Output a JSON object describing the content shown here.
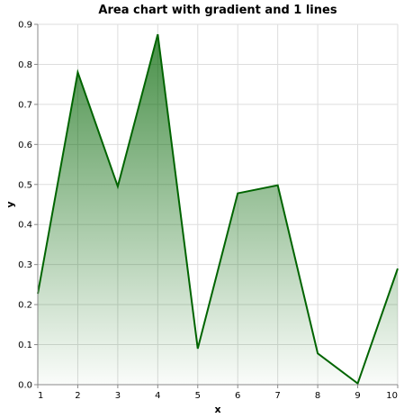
{
  "chart_data": {
    "type": "area",
    "title": "Area chart with gradient and 1 lines",
    "xlabel": "x",
    "ylabel": "y",
    "xlim": [
      1,
      10
    ],
    "ylim": [
      0,
      0.9
    ],
    "xticks": [
      "1",
      "2",
      "3",
      "4",
      "5",
      "6",
      "7",
      "8",
      "9",
      "10"
    ],
    "yticks": [
      "0.0",
      "0.1",
      "0.2",
      "0.3",
      "0.4",
      "0.5",
      "0.6",
      "0.7",
      "0.8",
      "0.9"
    ],
    "grid": true,
    "legend": "none",
    "series": [
      {
        "x": [
          1,
          2,
          3,
          4,
          5,
          6,
          7,
          8,
          9,
          10
        ],
        "values": [
          0.227,
          0.78,
          0.495,
          0.875,
          0.09,
          0.478,
          0.498,
          0.078,
          0.003,
          0.29
        ],
        "color": "#006400"
      }
    ]
  }
}
